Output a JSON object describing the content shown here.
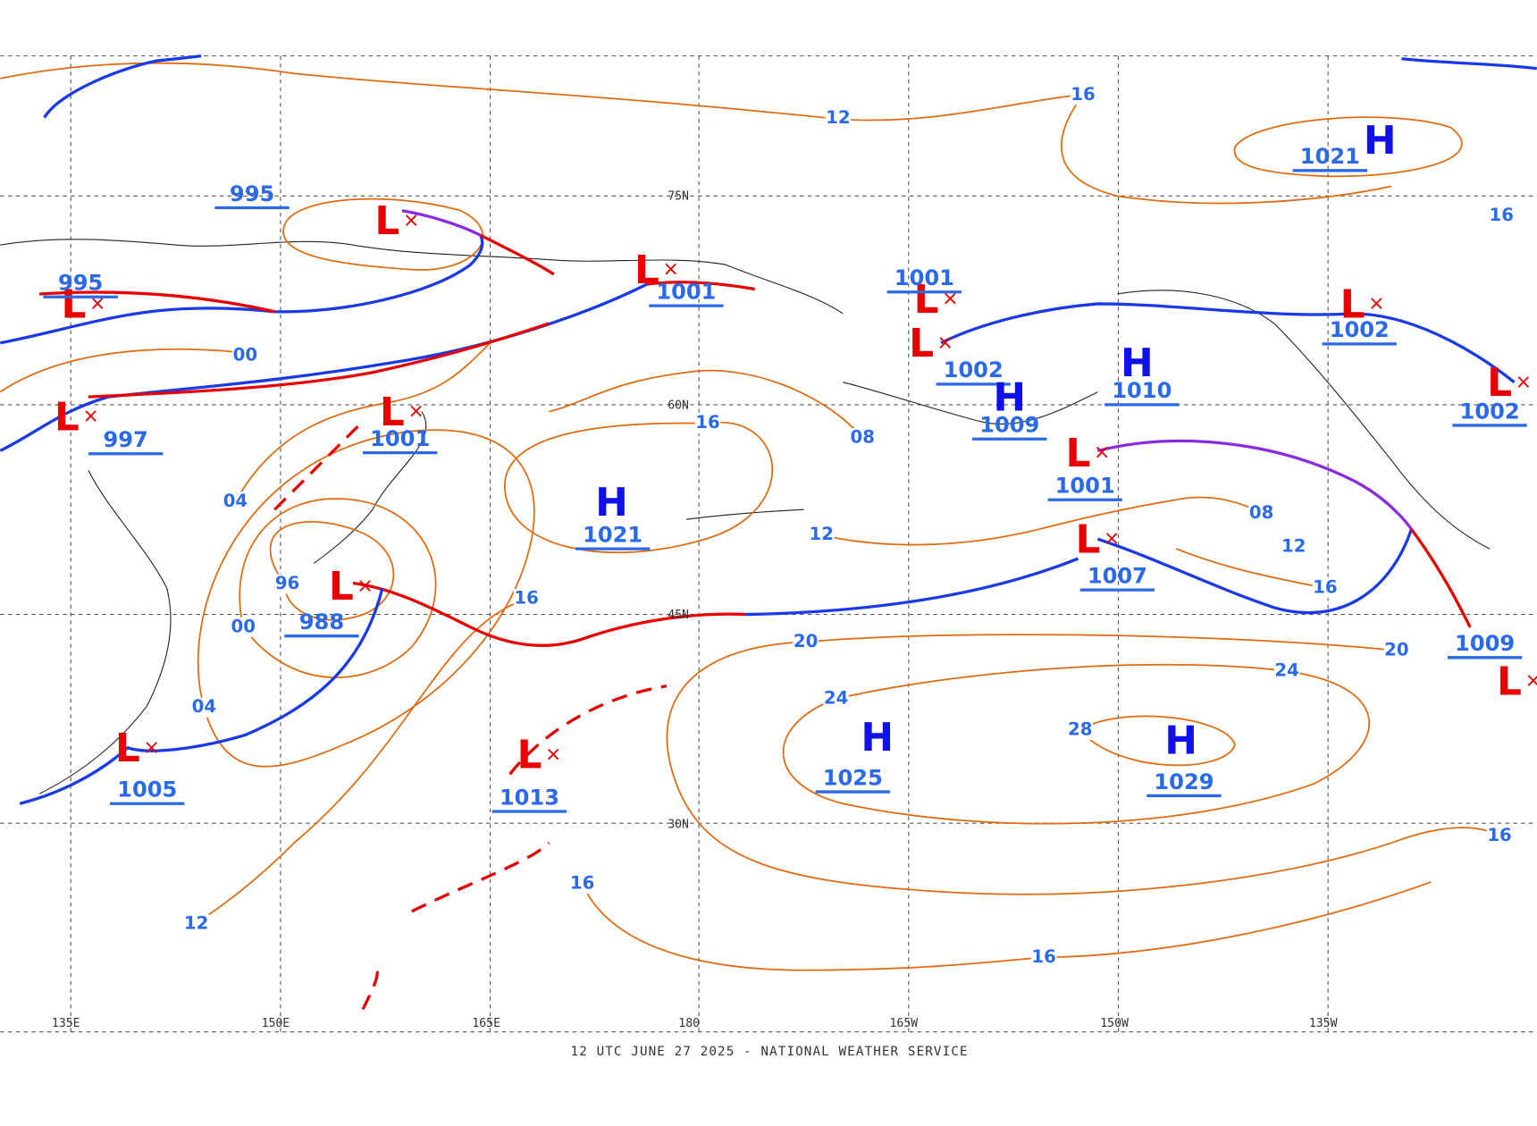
{
  "map": {
    "footer": "12 UTC JUNE 27 2025 - NATIONAL WEATHER SERVICE",
    "longitude_labels": [
      "135E",
      "150E",
      "165E",
      "180",
      "165W",
      "150W",
      "135W"
    ],
    "latitude_labels": [
      "75N",
      "60N",
      "45N",
      "30N"
    ],
    "centers": [
      {
        "type": "L",
        "pressure": "995"
      },
      {
        "type": "L",
        "pressure": "997"
      },
      {
        "type": "L",
        "pressure": "1001"
      },
      {
        "type": "L",
        "pressure": "995"
      },
      {
        "type": "L",
        "pressure": "1001"
      },
      {
        "type": "L",
        "pressure": "1001"
      },
      {
        "type": "L",
        "pressure": "1002"
      },
      {
        "type": "H",
        "pressure": "1009"
      },
      {
        "type": "H",
        "pressure": "1010"
      },
      {
        "type": "L",
        "pressure": "1001"
      },
      {
        "type": "L",
        "pressure": "1007"
      },
      {
        "type": "H",
        "pressure": "1021"
      },
      {
        "type": "L",
        "pressure": "1002"
      },
      {
        "type": "L",
        "pressure": "1002"
      },
      {
        "type": "H",
        "pressure": "1021"
      },
      {
        "type": "L",
        "pressure": "988"
      },
      {
        "type": "L",
        "pressure": "1005"
      },
      {
        "type": "L",
        "pressure": "1013"
      },
      {
        "type": "H",
        "pressure": "1025"
      },
      {
        "type": "H",
        "pressure": "1029"
      },
      {
        "type": "L",
        "pressure": "1009"
      }
    ],
    "isobar_labels": [
      "12",
      "16",
      "00",
      "04",
      "96",
      "00",
      "04",
      "16",
      "08",
      "12",
      "16",
      "20",
      "24",
      "28",
      "24",
      "20",
      "16",
      "08",
      "12",
      "16",
      "16",
      "12",
      "16",
      "16"
    ]
  }
}
